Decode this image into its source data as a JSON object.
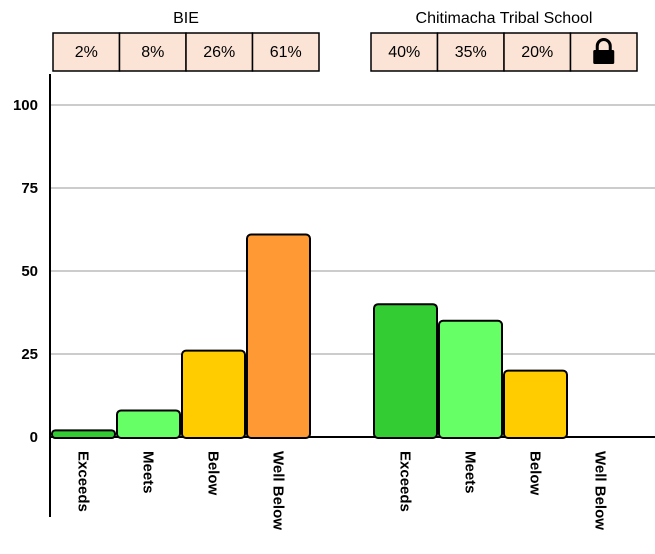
{
  "chart_data": {
    "type": "bar",
    "ylim": [
      0,
      100
    ],
    "yticks": [
      "0",
      "25",
      "50",
      "75",
      "100"
    ],
    "grid": true,
    "colors": {
      "Exceeds": "#33cc33",
      "Meets": "#66ff66",
      "Below": "#ffcc00",
      "Well Below": "#ff9933",
      "table_fill": "#fbe3d6"
    },
    "groups": [
      {
        "name": "BIE",
        "categories": [
          "Exceeds",
          "Meets",
          "Below",
          "Well Below"
        ],
        "values": [
          2,
          8,
          26,
          61
        ],
        "labels": [
          "2%",
          "8%",
          "26%",
          "61%"
        ]
      },
      {
        "name": "Chitimacha Tribal School",
        "categories": [
          "Exceeds",
          "Meets",
          "Below",
          "Well Below"
        ],
        "values": [
          40,
          35,
          20,
          null
        ],
        "labels": [
          "40%",
          "35%",
          "20%",
          null
        ],
        "suppressed_icon": "lock-icon"
      }
    ]
  }
}
